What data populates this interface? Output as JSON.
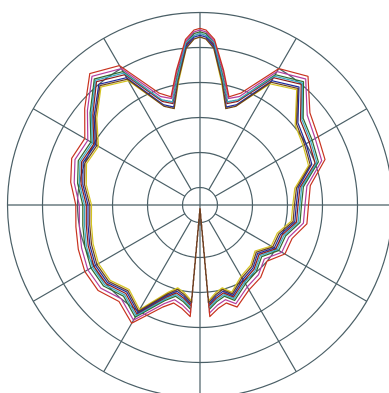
{
  "chart_data": {
    "type": "line",
    "polar": true,
    "title": "",
    "grid": true,
    "grid_color": "#4a5f66",
    "radial_rings": [
      0.1,
      0.3,
      0.5,
      0.7,
      0.9,
      1.1
    ],
    "angular_spokes_deg": [
      0,
      30,
      60,
      90,
      120,
      150,
      180,
      210,
      240,
      270,
      300,
      330
    ],
    "angle_units": "degrees",
    "angle_zero": "east",
    "angle_direction": "counterclockwise",
    "theta_deg": [
      0,
      10,
      20,
      30,
      40,
      50,
      60,
      70,
      75,
      80,
      85,
      88,
      90,
      92,
      95,
      100,
      105,
      110,
      120,
      130,
      140,
      150,
      160,
      170,
      180,
      190,
      200,
      210,
      220,
      230,
      240,
      250,
      255,
      260,
      265,
      270,
      275,
      280,
      285,
      290,
      300,
      310,
      320,
      330,
      340,
      350,
      360
    ],
    "series": [
      {
        "color": "#8b1a1a",
        "r": [
          0.56,
          0.58,
          0.7,
          0.72,
          0.75,
          0.9,
          0.84,
          0.63,
          0.6,
          0.74,
          0.92,
          0.97,
          0.98,
          0.97,
          0.92,
          0.74,
          0.6,
          0.63,
          0.86,
          0.92,
          0.8,
          0.7,
          0.72,
          0.69,
          0.65,
          0.66,
          0.68,
          0.7,
          0.7,
          0.66,
          0.72,
          0.56,
          0.52,
          0.54,
          0.58,
          0.02,
          0.58,
          0.54,
          0.52,
          0.56,
          0.5,
          0.48,
          0.44,
          0.5,
          0.5,
          0.56,
          0.56
        ]
      },
      {
        "color": "#2d6a2d",
        "r": [
          0.58,
          0.6,
          0.72,
          0.74,
          0.77,
          0.92,
          0.86,
          0.64,
          0.61,
          0.75,
          0.93,
          0.98,
          0.99,
          0.98,
          0.93,
          0.75,
          0.61,
          0.64,
          0.88,
          0.94,
          0.82,
          0.72,
          0.74,
          0.71,
          0.67,
          0.68,
          0.7,
          0.72,
          0.72,
          0.68,
          0.74,
          0.58,
          0.54,
          0.56,
          0.6,
          0.02,
          0.6,
          0.56,
          0.54,
          0.58,
          0.52,
          0.5,
          0.46,
          0.52,
          0.52,
          0.58,
          0.58
        ]
      },
      {
        "color": "#1c2a9c",
        "r": [
          0.55,
          0.57,
          0.68,
          0.7,
          0.73,
          0.88,
          0.82,
          0.61,
          0.58,
          0.72,
          0.91,
          0.96,
          0.97,
          0.96,
          0.91,
          0.72,
          0.58,
          0.61,
          0.84,
          0.9,
          0.79,
          0.69,
          0.71,
          0.68,
          0.64,
          0.65,
          0.67,
          0.69,
          0.69,
          0.65,
          0.71,
          0.55,
          0.51,
          0.53,
          0.57,
          0.02,
          0.57,
          0.53,
          0.51,
          0.55,
          0.49,
          0.47,
          0.43,
          0.49,
          0.49,
          0.55,
          0.55
        ]
      },
      {
        "color": "#b33d9e",
        "r": [
          0.6,
          0.62,
          0.74,
          0.76,
          0.8,
          0.94,
          0.88,
          0.66,
          0.63,
          0.77,
          0.94,
          0.99,
          1.0,
          0.99,
          0.94,
          0.77,
          0.63,
          0.66,
          0.9,
          0.96,
          0.84,
          0.74,
          0.76,
          0.73,
          0.69,
          0.7,
          0.72,
          0.74,
          0.74,
          0.7,
          0.76,
          0.6,
          0.56,
          0.58,
          0.62,
          0.02,
          0.62,
          0.58,
          0.56,
          0.6,
          0.54,
          0.52,
          0.48,
          0.54,
          0.54,
          0.6,
          0.6
        ]
      },
      {
        "color": "#d4c31f",
        "r": [
          0.53,
          0.55,
          0.66,
          0.68,
          0.71,
          0.86,
          0.8,
          0.6,
          0.57,
          0.71,
          0.9,
          0.95,
          0.96,
          0.95,
          0.9,
          0.71,
          0.57,
          0.6,
          0.82,
          0.88,
          0.77,
          0.67,
          0.69,
          0.66,
          0.62,
          0.63,
          0.65,
          0.67,
          0.67,
          0.63,
          0.69,
          0.53,
          0.49,
          0.51,
          0.55,
          0.02,
          0.55,
          0.51,
          0.49,
          0.53,
          0.47,
          0.45,
          0.41,
          0.47,
          0.47,
          0.53,
          0.53
        ]
      },
      {
        "color": "#3aa7c4",
        "r": [
          0.57,
          0.59,
          0.71,
          0.73,
          0.76,
          0.91,
          0.85,
          0.64,
          0.61,
          0.74,
          0.93,
          0.97,
          0.98,
          0.97,
          0.93,
          0.74,
          0.61,
          0.64,
          0.87,
          0.93,
          0.81,
          0.71,
          0.73,
          0.7,
          0.66,
          0.67,
          0.69,
          0.71,
          0.71,
          0.67,
          0.73,
          0.57,
          0.53,
          0.55,
          0.59,
          0.02,
          0.59,
          0.55,
          0.53,
          0.57,
          0.51,
          0.49,
          0.45,
          0.51,
          0.51,
          0.57,
          0.57
        ]
      },
      {
        "color": "#c8321e",
        "r": [
          0.62,
          0.64,
          0.76,
          0.78,
          0.82,
          0.96,
          0.9,
          0.68,
          0.64,
          0.78,
          0.95,
          1.0,
          1.01,
          1.0,
          0.95,
          0.78,
          0.64,
          0.68,
          0.92,
          0.98,
          0.86,
          0.76,
          0.78,
          0.75,
          0.71,
          0.72,
          0.74,
          0.76,
          0.76,
          0.72,
          0.78,
          0.62,
          0.58,
          0.6,
          0.64,
          0.02,
          0.64,
          0.6,
          0.58,
          0.62,
          0.56,
          0.54,
          0.5,
          0.56,
          0.56,
          0.62,
          0.62
        ]
      },
      {
        "color": "#6b3f1d",
        "r": [
          0.54,
          0.56,
          0.67,
          0.69,
          0.72,
          0.87,
          0.81,
          0.6,
          0.57,
          0.72,
          0.9,
          0.95,
          0.96,
          0.95,
          0.9,
          0.72,
          0.57,
          0.6,
          0.83,
          0.89,
          0.78,
          0.68,
          0.7,
          0.67,
          0.63,
          0.64,
          0.66,
          0.68,
          0.68,
          0.64,
          0.7,
          0.54,
          0.5,
          0.52,
          0.56,
          0.02,
          0.56,
          0.52,
          0.5,
          0.54,
          0.48,
          0.46,
          0.42,
          0.48,
          0.48,
          0.54,
          0.54
        ]
      }
    ]
  }
}
